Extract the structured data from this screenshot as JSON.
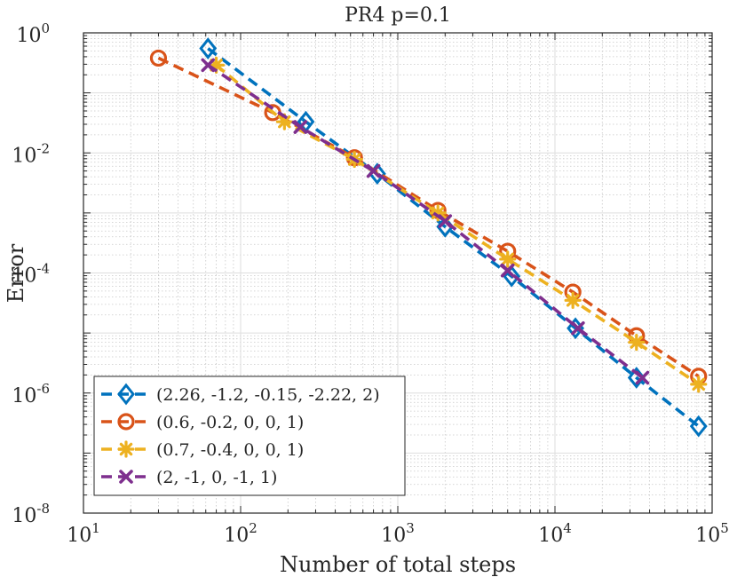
{
  "chart_data": {
    "type": "line",
    "title": "PR4 p=0.1",
    "xlabel": "Number of total steps",
    "ylabel": "Error",
    "xscale": "log",
    "yscale": "log",
    "xlim": [
      10,
      100000
    ],
    "ylim": [
      1e-08,
      1
    ],
    "grid": true,
    "minor_grid": true,
    "legend_location": "bottom-left",
    "x_ticks": [
      {
        "value": 10,
        "base": "10",
        "exp": "1"
      },
      {
        "value": 100,
        "base": "10",
        "exp": "2"
      },
      {
        "value": 1000,
        "base": "10",
        "exp": "3"
      },
      {
        "value": 10000,
        "base": "10",
        "exp": "4"
      },
      {
        "value": 100000,
        "base": "10",
        "exp": "5"
      }
    ],
    "y_ticks": [
      {
        "value": 1e-08,
        "base": "10",
        "exp": "-8"
      },
      {
        "value": 1e-06,
        "base": "10",
        "exp": "-6"
      },
      {
        "value": 0.0001,
        "base": "10",
        "exp": "-4"
      },
      {
        "value": 0.01,
        "base": "10",
        "exp": "-2"
      },
      {
        "value": 1,
        "base": "10",
        "exp": "0"
      }
    ],
    "series": [
      {
        "name": "(2.26, -1.2, -0.15, -2.22, 2)",
        "color": "#0072BD",
        "marker": "diamond",
        "x": [
          62,
          260,
          740,
          2000,
          5300,
          13500,
          33000,
          82000
        ],
        "y": [
          0.55,
          0.033,
          0.0045,
          0.00059,
          8.8e-05,
          1.2e-05,
          1.8e-06,
          2.8e-07
        ]
      },
      {
        "name": "(0.6, -0.2, 0, 0, 1)",
        "color": "#D95319",
        "marker": "circle",
        "x": [
          30,
          160,
          530,
          1800,
          5000,
          13000,
          33000,
          82000
        ],
        "y": [
          0.38,
          0.047,
          0.0083,
          0.0011,
          0.00023,
          4.8e-05,
          9e-06,
          1.9e-06
        ]
      },
      {
        "name": "(0.7, -0.4, 0, 0, 1)",
        "color": "#EDB120",
        "marker": "asterisk",
        "x": [
          70,
          190,
          530,
          1800,
          5000,
          13000,
          33000,
          82000
        ],
        "y": [
          0.29,
          0.033,
          0.0078,
          0.001,
          0.00017,
          3.5e-05,
          7e-06,
          1.4e-06
        ]
      },
      {
        "name": "(2, -1, 0, -1, 1)",
        "color": "#7E2F8E",
        "marker": "x",
        "x": [
          62,
          240,
          700,
          2000,
          5000,
          14000,
          36000
        ],
        "y": [
          0.29,
          0.027,
          0.005,
          0.00073,
          0.00011,
          1.2e-05,
          1.8e-06
        ]
      }
    ]
  }
}
